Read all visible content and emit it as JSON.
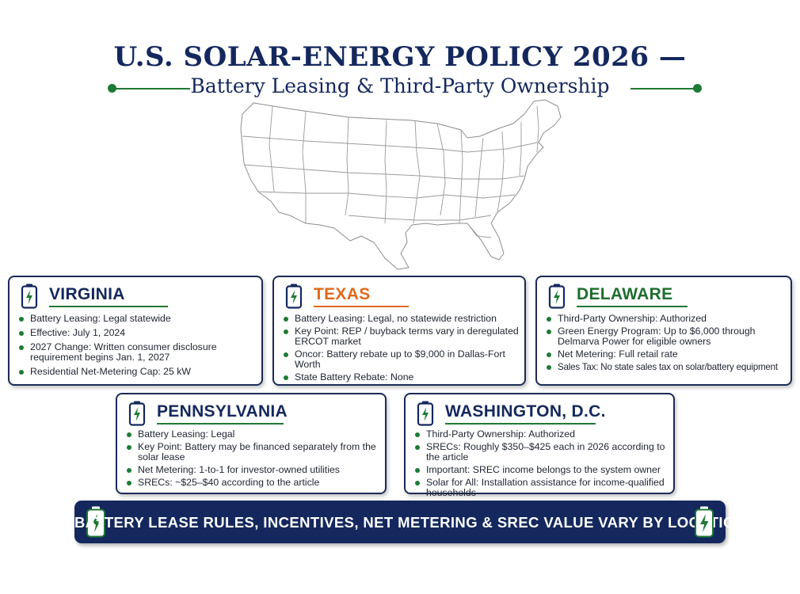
{
  "header": {
    "title": "U.S. SOLAR-ENERGY POLICY 2026 —",
    "subtitle": "Battery Leasing & Third-Party Ownership"
  },
  "colors": {
    "navy": "#14285e",
    "green": "#1e7a34",
    "orange": "#e06a1b",
    "delaware_green": "#1e6e2e"
  },
  "icons": {
    "card": "battery-bolt-icon",
    "footer": "battery-bolt-icon",
    "map": "us-map-icon"
  },
  "cards": {
    "virginia": {
      "title": "VIRGINIA",
      "bullets": [
        "Battery Leasing: Legal statewide",
        "Effective: July 1, 2024",
        "2027 Change: Written consumer disclosure requirement begins Jan. 1, 2027",
        "Residential Net-Metering Cap: 25 kW"
      ]
    },
    "texas": {
      "title": "TEXAS",
      "bullets": [
        "Battery Leasing: Legal, no statewide restriction",
        "Key Point: REP / buyback terms vary in deregulated ERCOT market",
        "Oncor: Battery rebate up to $9,000 in Dallas-Fort Worth",
        "State Battery Rebate: None"
      ]
    },
    "delaware": {
      "title": "DELAWARE",
      "bullets": [
        "Third-Party Ownership: Authorized",
        "Green Energy Program: Up to $6,000 through Delmarva Power for eligible owners",
        "Net Metering: Full retail rate",
        "Sales Tax: No state sales tax on solar/battery equipment"
      ]
    },
    "pennsylvania": {
      "title": "PENNSYLVANIA",
      "bullets": [
        "Battery Leasing: Legal",
        "Key Point: Battery may be financed separately from the solar lease",
        "Net Metering: 1-to-1 for investor-owned utilities",
        "SRECs: ~$25–$40 according to the article"
      ]
    },
    "dc": {
      "title": "WASHINGTON, D.C.",
      "bullets": [
        "Third-Party Ownership: Authorized",
        "SRECs: Roughly $350–$425 each in 2026 according to the article",
        "Important: SREC income belongs to the system owner",
        "Solar for All: Installation assistance for income-qualified households"
      ]
    }
  },
  "footer": {
    "text": "BATTERY LEASE RULES, INCENTIVES, NET METERING & SREC VALUE VARY BY LOCATION."
  }
}
